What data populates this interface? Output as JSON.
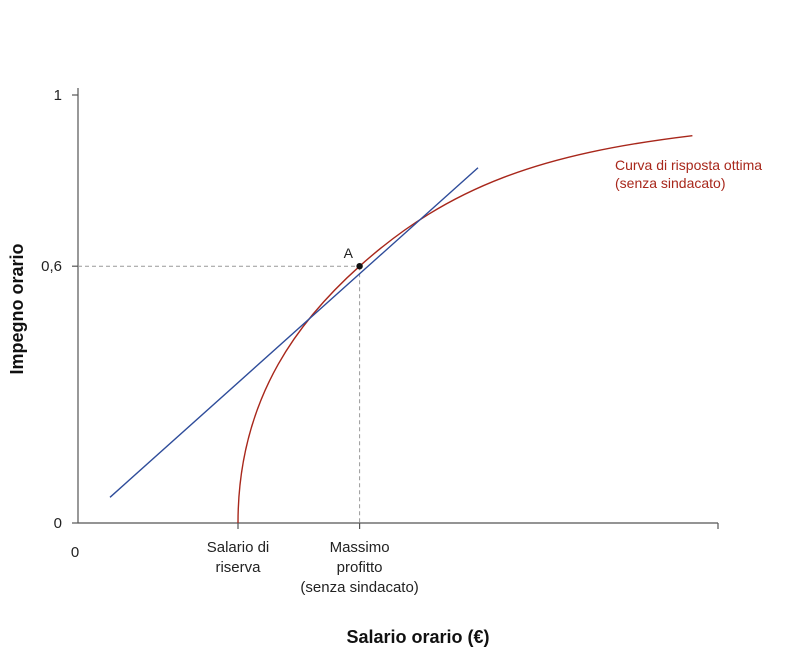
{
  "chart_data": {
    "type": "line",
    "xlabel": "Salario orario (€)",
    "ylabel": "Impegno orario",
    "x_origin_label": "0",
    "y_ticks": [
      {
        "value": 0,
        "label": "0"
      },
      {
        "value": 0.6,
        "label": "0,6"
      },
      {
        "value": 1,
        "label": "1"
      }
    ],
    "ylim": [
      0,
      1
    ],
    "xlim": [
      0,
      100
    ],
    "x_categories": [
      {
        "value": 25,
        "lines": [
          "Salario di",
          "riserva"
        ]
      },
      {
        "value": 44,
        "lines": [
          "Massimo",
          "profitto",
          "(senza sindacato)"
        ]
      }
    ],
    "series": [
      {
        "name": "Curva di risposta ottima (senza sindacato)",
        "label_lines": [
          "Curva di risposta ottima",
          "(senza sindacato)"
        ],
        "color": "#a8271b",
        "kind": "best-response-curve",
        "reservation_wage": 25,
        "x_end": 96,
        "y_end": 0.905
      },
      {
        "name": "",
        "color": "#2e4c9a",
        "kind": "tangent-line",
        "x": [
          5,
          62.5
        ],
        "y": [
          0.06,
          0.83
        ]
      }
    ],
    "point": {
      "label": "A",
      "x": 44,
      "y": 0.6
    },
    "guides": {
      "dashed_to_point": true,
      "color": "#999999"
    },
    "grid": false
  }
}
